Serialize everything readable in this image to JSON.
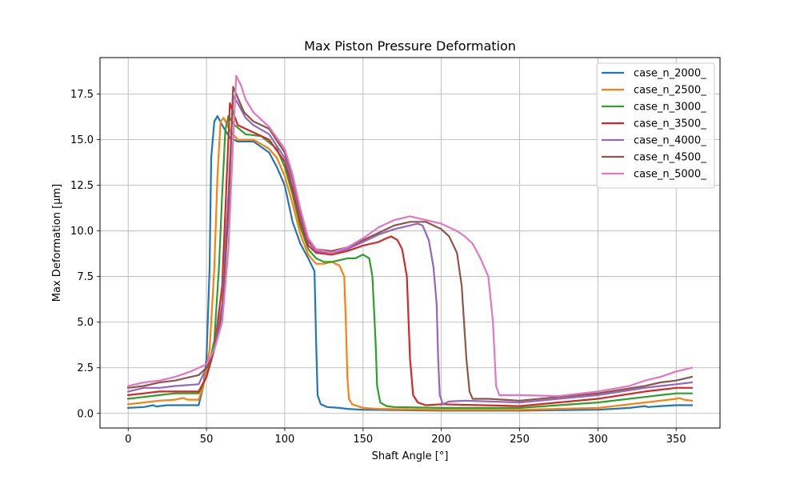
{
  "chart_data": {
    "type": "line",
    "title": "Max Piston Pressure Deformation",
    "xlabel": "Shaft Angle [°]",
    "ylabel": "Max Deformation [µm]",
    "xlim": [
      -18,
      378
    ],
    "ylim": [
      -0.8,
      19.5
    ],
    "xticks": [
      0,
      50,
      100,
      150,
      200,
      250,
      300,
      350
    ],
    "yticks": [
      0.0,
      2.5,
      5.0,
      7.5,
      10.0,
      12.5,
      15.0,
      17.5
    ],
    "ytick_labels": [
      "0.0",
      "2.5",
      "5.0",
      "7.5",
      "10.0",
      "12.5",
      "15.0",
      "17.5"
    ],
    "grid": true,
    "legend_position": "top-right",
    "series": [
      {
        "name": "case_n_2000_",
        "color": "#1f77b4",
        "points": [
          [
            0,
            0.3
          ],
          [
            10,
            0.35
          ],
          [
            16,
            0.45
          ],
          [
            18,
            0.38
          ],
          [
            25,
            0.45
          ],
          [
            35,
            0.45
          ],
          [
            45,
            0.45
          ],
          [
            48,
            1.5
          ],
          [
            50,
            3.0
          ],
          [
            52,
            8.0
          ],
          [
            53,
            14.0
          ],
          [
            55,
            16.0
          ],
          [
            57,
            16.3
          ],
          [
            60,
            15.8
          ],
          [
            65,
            15.1
          ],
          [
            70,
            14.9
          ],
          [
            80,
            14.9
          ],
          [
            90,
            14.3
          ],
          [
            95,
            13.5
          ],
          [
            100,
            12.5
          ],
          [
            105,
            10.5
          ],
          [
            110,
            9.3
          ],
          [
            115,
            8.5
          ],
          [
            119,
            7.8
          ],
          [
            120,
            4.0
          ],
          [
            121,
            1.0
          ],
          [
            123,
            0.5
          ],
          [
            127,
            0.35
          ],
          [
            135,
            0.3
          ],
          [
            140,
            0.25
          ],
          [
            150,
            0.2
          ],
          [
            200,
            0.15
          ],
          [
            250,
            0.15
          ],
          [
            300,
            0.2
          ],
          [
            320,
            0.3
          ],
          [
            330,
            0.4
          ],
          [
            332,
            0.35
          ],
          [
            340,
            0.4
          ],
          [
            350,
            0.45
          ],
          [
            360,
            0.45
          ]
        ]
      },
      {
        "name": "case_n_2500_",
        "color": "#ff7f0e",
        "points": [
          [
            0,
            0.5
          ],
          [
            10,
            0.6
          ],
          [
            20,
            0.7
          ],
          [
            30,
            0.75
          ],
          [
            35,
            0.85
          ],
          [
            38,
            0.75
          ],
          [
            45,
            0.75
          ],
          [
            48,
            1.5
          ],
          [
            52,
            3.5
          ],
          [
            55,
            8.0
          ],
          [
            57,
            13.0
          ],
          [
            59,
            16.0
          ],
          [
            61,
            16.2
          ],
          [
            65,
            15.5
          ],
          [
            70,
            15.0
          ],
          [
            80,
            15.0
          ],
          [
            90,
            14.5
          ],
          [
            95,
            14.0
          ],
          [
            100,
            13.0
          ],
          [
            105,
            11.5
          ],
          [
            110,
            9.8
          ],
          [
            115,
            8.7
          ],
          [
            120,
            8.2
          ],
          [
            125,
            8.2
          ],
          [
            130,
            8.3
          ],
          [
            135,
            8.1
          ],
          [
            138,
            7.5
          ],
          [
            139,
            5.0
          ],
          [
            140,
            2.0
          ],
          [
            141,
            0.8
          ],
          [
            143,
            0.5
          ],
          [
            150,
            0.3
          ],
          [
            160,
            0.25
          ],
          [
            200,
            0.2
          ],
          [
            250,
            0.2
          ],
          [
            300,
            0.3
          ],
          [
            330,
            0.6
          ],
          [
            340,
            0.7
          ],
          [
            350,
            0.8
          ],
          [
            352,
            0.85
          ],
          [
            355,
            0.75
          ],
          [
            360,
            0.7
          ]
        ]
      },
      {
        "name": "case_n_3000_",
        "color": "#2ca02c",
        "points": [
          [
            0,
            0.8
          ],
          [
            10,
            0.9
          ],
          [
            20,
            1.0
          ],
          [
            30,
            1.1
          ],
          [
            45,
            1.1
          ],
          [
            50,
            2.0
          ],
          [
            55,
            4.0
          ],
          [
            58,
            8.0
          ],
          [
            60,
            12.0
          ],
          [
            62,
            15.5
          ],
          [
            64,
            16.3
          ],
          [
            68,
            15.8
          ],
          [
            75,
            15.3
          ],
          [
            85,
            15.2
          ],
          [
            95,
            14.5
          ],
          [
            100,
            13.5
          ],
          [
            105,
            12.0
          ],
          [
            110,
            10.2
          ],
          [
            115,
            9.0
          ],
          [
            120,
            8.5
          ],
          [
            125,
            8.3
          ],
          [
            130,
            8.3
          ],
          [
            140,
            8.5
          ],
          [
            145,
            8.5
          ],
          [
            150,
            8.7
          ],
          [
            154,
            8.5
          ],
          [
            156,
            7.5
          ],
          [
            158,
            4.0
          ],
          [
            159,
            1.5
          ],
          [
            161,
            0.6
          ],
          [
            165,
            0.4
          ],
          [
            170,
            0.35
          ],
          [
            200,
            0.3
          ],
          [
            250,
            0.3
          ],
          [
            300,
            0.6
          ],
          [
            330,
            0.9
          ],
          [
            340,
            1.0
          ],
          [
            350,
            1.1
          ],
          [
            360,
            1.1
          ]
        ]
      },
      {
        "name": "case_n_3500_",
        "color": "#d62728",
        "points": [
          [
            0,
            1.0
          ],
          [
            10,
            1.1
          ],
          [
            20,
            1.2
          ],
          [
            30,
            1.2
          ],
          [
            45,
            1.2
          ],
          [
            50,
            2.0
          ],
          [
            55,
            3.5
          ],
          [
            60,
            7.0
          ],
          [
            63,
            13.0
          ],
          [
            65,
            17.0
          ],
          [
            67,
            16.5
          ],
          [
            70,
            15.8
          ],
          [
            80,
            15.4
          ],
          [
            90,
            15.0
          ],
          [
            100,
            13.8
          ],
          [
            105,
            12.3
          ],
          [
            110,
            10.5
          ],
          [
            115,
            9.2
          ],
          [
            120,
            8.8
          ],
          [
            130,
            8.7
          ],
          [
            140,
            8.9
          ],
          [
            150,
            9.2
          ],
          [
            160,
            9.4
          ],
          [
            165,
            9.6
          ],
          [
            168,
            9.7
          ],
          [
            172,
            9.5
          ],
          [
            175,
            9.0
          ],
          [
            178,
            7.5
          ],
          [
            180,
            3.0
          ],
          [
            182,
            1.0
          ],
          [
            185,
            0.6
          ],
          [
            190,
            0.45
          ],
          [
            200,
            0.5
          ],
          [
            250,
            0.4
          ],
          [
            300,
            0.8
          ],
          [
            330,
            1.2
          ],
          [
            340,
            1.3
          ],
          [
            350,
            1.4
          ],
          [
            360,
            1.4
          ]
        ]
      },
      {
        "name": "case_n_4000_",
        "color": "#9467bd",
        "points": [
          [
            0,
            1.2
          ],
          [
            10,
            1.4
          ],
          [
            20,
            1.4
          ],
          [
            30,
            1.5
          ],
          [
            45,
            1.6
          ],
          [
            50,
            2.5
          ],
          [
            55,
            3.5
          ],
          [
            60,
            6.0
          ],
          [
            64,
            12.0
          ],
          [
            67,
            17.4
          ],
          [
            70,
            17.0
          ],
          [
            75,
            16.2
          ],
          [
            80,
            15.8
          ],
          [
            90,
            15.3
          ],
          [
            100,
            14.0
          ],
          [
            105,
            12.7
          ],
          [
            110,
            10.8
          ],
          [
            115,
            9.4
          ],
          [
            120,
            8.9
          ],
          [
            130,
            8.8
          ],
          [
            140,
            9.0
          ],
          [
            150,
            9.4
          ],
          [
            160,
            9.8
          ],
          [
            170,
            10.1
          ],
          [
            180,
            10.3
          ],
          [
            185,
            10.4
          ],
          [
            188,
            10.3
          ],
          [
            192,
            9.5
          ],
          [
            195,
            8.0
          ],
          [
            197,
            6.0
          ],
          [
            198,
            3.0
          ],
          [
            199,
            1.0
          ],
          [
            201,
            0.5
          ],
          [
            205,
            0.65
          ],
          [
            215,
            0.7
          ],
          [
            250,
            0.6
          ],
          [
            300,
            1.0
          ],
          [
            330,
            1.4
          ],
          [
            340,
            1.5
          ],
          [
            350,
            1.6
          ],
          [
            360,
            1.7
          ]
        ]
      },
      {
        "name": "case_n_4500_",
        "color": "#8c564b",
        "points": [
          [
            0,
            1.4
          ],
          [
            10,
            1.5
          ],
          [
            20,
            1.7
          ],
          [
            30,
            1.8
          ],
          [
            40,
            2.0
          ],
          [
            45,
            2.1
          ],
          [
            50,
            2.5
          ],
          [
            55,
            3.5
          ],
          [
            60,
            5.5
          ],
          [
            64,
            11.0
          ],
          [
            67,
            17.9
          ],
          [
            70,
            17.3
          ],
          [
            74,
            16.5
          ],
          [
            80,
            16.0
          ],
          [
            90,
            15.6
          ],
          [
            100,
            14.3
          ],
          [
            105,
            13.0
          ],
          [
            110,
            11.0
          ],
          [
            115,
            9.5
          ],
          [
            120,
            9.0
          ],
          [
            130,
            8.9
          ],
          [
            140,
            9.1
          ],
          [
            150,
            9.5
          ],
          [
            160,
            9.9
          ],
          [
            170,
            10.3
          ],
          [
            180,
            10.5
          ],
          [
            190,
            10.5
          ],
          [
            200,
            10.1
          ],
          [
            205,
            9.7
          ],
          [
            210,
            8.8
          ],
          [
            213,
            7.0
          ],
          [
            216,
            3.0
          ],
          [
            218,
            1.2
          ],
          [
            220,
            0.8
          ],
          [
            230,
            0.8
          ],
          [
            250,
            0.7
          ],
          [
            300,
            1.1
          ],
          [
            330,
            1.5
          ],
          [
            340,
            1.7
          ],
          [
            350,
            1.8
          ],
          [
            360,
            2.0
          ]
        ]
      },
      {
        "name": "case_n_5000_",
        "color": "#e377c2",
        "points": [
          [
            0,
            1.5
          ],
          [
            10,
            1.7
          ],
          [
            20,
            1.8
          ],
          [
            30,
            2.0
          ],
          [
            40,
            2.3
          ],
          [
            45,
            2.5
          ],
          [
            50,
            2.7
          ],
          [
            55,
            3.5
          ],
          [
            60,
            5.0
          ],
          [
            64,
            9.0
          ],
          [
            67,
            15.0
          ],
          [
            69,
            18.5
          ],
          [
            72,
            18.0
          ],
          [
            75,
            17.2
          ],
          [
            80,
            16.5
          ],
          [
            90,
            15.7
          ],
          [
            100,
            14.5
          ],
          [
            105,
            13.1
          ],
          [
            110,
            11.2
          ],
          [
            115,
            9.6
          ],
          [
            120,
            9.0
          ],
          [
            130,
            8.8
          ],
          [
            140,
            9.1
          ],
          [
            150,
            9.6
          ],
          [
            160,
            10.2
          ],
          [
            170,
            10.6
          ],
          [
            180,
            10.8
          ],
          [
            190,
            10.6
          ],
          [
            200,
            10.4
          ],
          [
            210,
            10.0
          ],
          [
            215,
            9.7
          ],
          [
            220,
            9.3
          ],
          [
            225,
            8.5
          ],
          [
            230,
            7.5
          ],
          [
            233,
            5.0
          ],
          [
            235,
            1.5
          ],
          [
            237,
            1.0
          ],
          [
            250,
            1.0
          ],
          [
            275,
            0.95
          ],
          [
            300,
            1.2
          ],
          [
            320,
            1.5
          ],
          [
            330,
            1.8
          ],
          [
            340,
            2.0
          ],
          [
            350,
            2.3
          ],
          [
            360,
            2.5
          ]
        ]
      }
    ]
  }
}
